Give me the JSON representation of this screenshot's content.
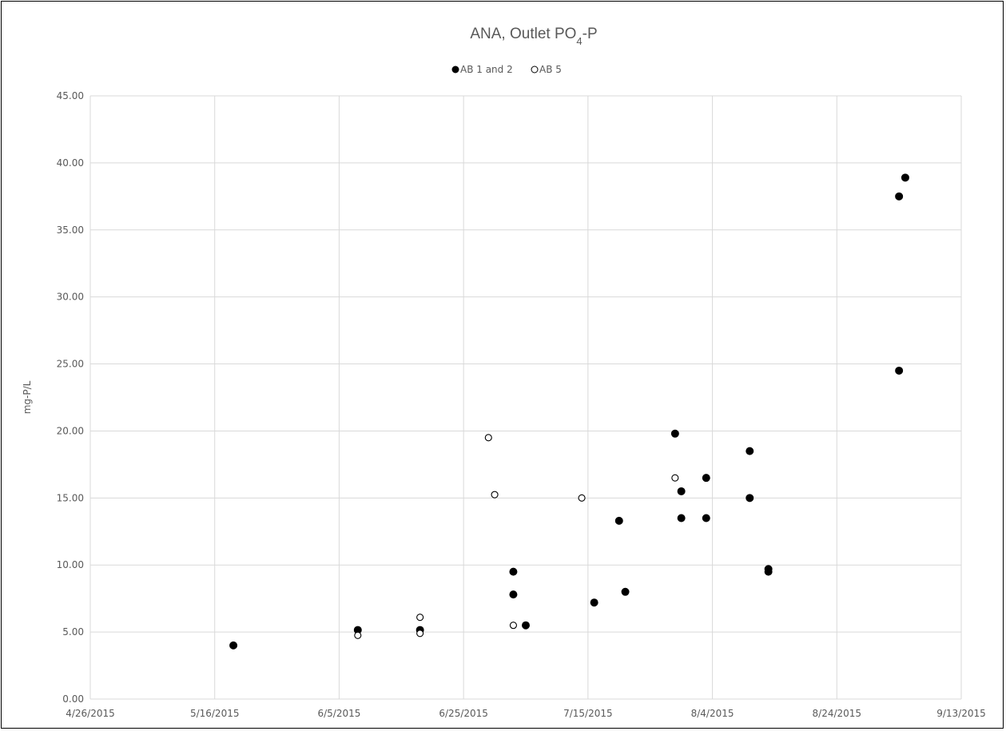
{
  "chart_data": {
    "type": "scatter",
    "title_main": "ANA, Outlet PO",
    "title_sub": "4",
    "title_tail": "-P",
    "xlabel": "",
    "ylabel": "mg-P/L",
    "x_type": "date",
    "xlim": [
      "2015-04-26",
      "2015-09-13"
    ],
    "x_tick_labels": [
      "4/26/2015",
      "5/16/2015",
      "6/5/2015",
      "6/25/2015",
      "7/15/2015",
      "8/4/2015",
      "8/24/2015",
      "9/13/2015"
    ],
    "x_tick_dates": [
      "2015-04-26",
      "2015-05-16",
      "2015-06-05",
      "2015-06-25",
      "2015-07-15",
      "2015-08-04",
      "2015-08-24",
      "2015-09-13"
    ],
    "ylim": [
      0,
      45
    ],
    "y_tick_labels": [
      "0.00",
      "5.00",
      "10.00",
      "15.00",
      "20.00",
      "25.00",
      "30.00",
      "35.00",
      "40.00",
      "45.00"
    ],
    "grid": true,
    "legend_position": "top",
    "series": [
      {
        "name": "AB 1 and 2",
        "marker": "filled-circle",
        "color": "#000000",
        "points": [
          {
            "x": "2015-05-19",
            "y": 4.0
          },
          {
            "x": "2015-06-08",
            "y": 5.15
          },
          {
            "x": "2015-06-18",
            "y": 5.15
          },
          {
            "x": "2015-07-03",
            "y": 9.5
          },
          {
            "x": "2015-07-03",
            "y": 7.8
          },
          {
            "x": "2015-07-05",
            "y": 5.5
          },
          {
            "x": "2015-07-16",
            "y": 7.2
          },
          {
            "x": "2015-07-20",
            "y": 13.3
          },
          {
            "x": "2015-07-21",
            "y": 8.0
          },
          {
            "x": "2015-07-29",
            "y": 19.8
          },
          {
            "x": "2015-07-30",
            "y": 15.5
          },
          {
            "x": "2015-07-30",
            "y": 13.5
          },
          {
            "x": "2015-08-03",
            "y": 16.5
          },
          {
            "x": "2015-08-03",
            "y": 13.5
          },
          {
            "x": "2015-08-10",
            "y": 18.5
          },
          {
            "x": "2015-08-10",
            "y": 15.0
          },
          {
            "x": "2015-08-13",
            "y": 9.7
          },
          {
            "x": "2015-08-13",
            "y": 9.5
          },
          {
            "x": "2015-09-03",
            "y": 37.5
          },
          {
            "x": "2015-09-03",
            "y": 24.5
          },
          {
            "x": "2015-09-04",
            "y": 38.9
          }
        ]
      },
      {
        "name": "AB 5",
        "marker": "open-circle",
        "color": "#000000",
        "points": [
          {
            "x": "2015-06-08",
            "y": 4.75
          },
          {
            "x": "2015-06-18",
            "y": 6.1
          },
          {
            "x": "2015-06-18",
            "y": 4.9
          },
          {
            "x": "2015-06-29",
            "y": 19.5
          },
          {
            "x": "2015-06-30",
            "y": 15.25
          },
          {
            "x": "2015-07-03",
            "y": 5.5
          },
          {
            "x": "2015-07-14",
            "y": 15.0
          },
          {
            "x": "2015-07-29",
            "y": 16.5
          }
        ]
      }
    ]
  }
}
